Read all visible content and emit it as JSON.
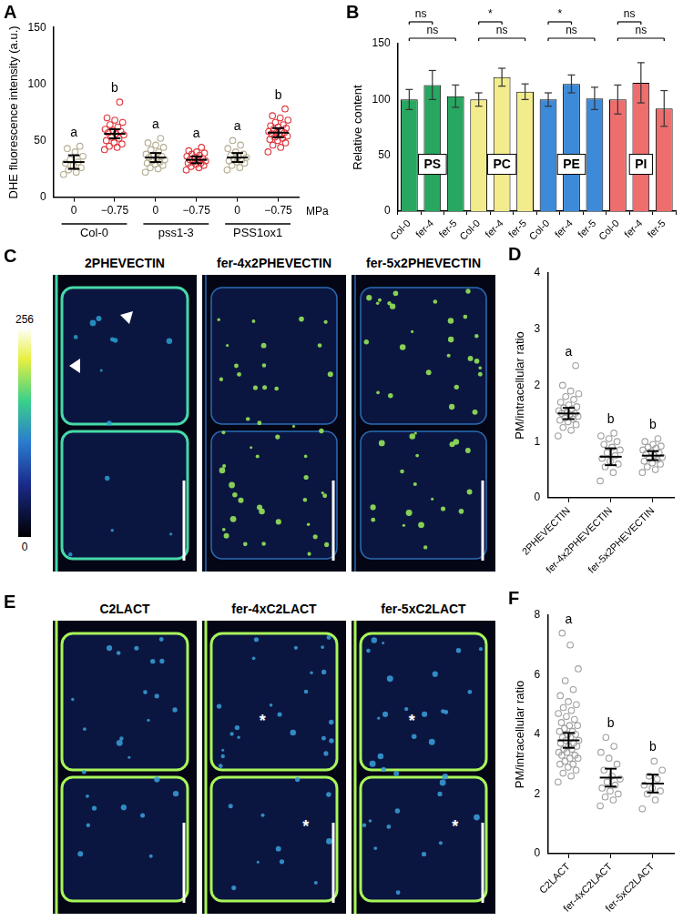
{
  "chart_data": [
    {
      "panel": "A",
      "type": "dot_plot",
      "y_label": "DHE fluorescence intensity (a.u.)",
      "categories": [
        "0",
        "−0.75",
        "0",
        "−0.75",
        "0",
        "−0.75"
      ],
      "group_labels": [
        "Col-0",
        "pss1-3",
        "PSS1ox1"
      ],
      "x_unit": "MPa",
      "colors": [
        "#b5ac8f",
        "#e0353a",
        "#b5ac8f",
        "#e0353a",
        "#b5ac8f",
        "#e0353a"
      ],
      "points": [
        [
          20,
          22,
          24,
          26,
          28,
          30,
          31,
          33,
          36,
          40,
          43,
          45
        ],
        [
          42,
          44,
          45,
          47,
          48,
          50,
          52,
          53,
          55,
          56,
          57,
          58,
          59,
          60,
          62,
          64,
          66,
          68,
          70,
          84
        ],
        [
          22,
          25,
          26,
          28,
          29,
          30,
          31,
          32,
          33,
          34,
          35,
          36,
          37,
          38,
          40,
          42,
          44,
          46,
          48,
          52
        ],
        [
          24,
          26,
          27,
          28,
          29,
          30,
          30,
          31,
          32,
          33,
          33,
          34,
          35,
          36,
          37,
          38,
          39,
          40,
          41,
          44
        ],
        [
          24,
          26,
          28,
          30,
          31,
          32,
          33,
          34,
          35,
          36,
          37,
          38,
          40,
          43,
          46,
          50
        ],
        [
          40,
          44,
          46,
          48,
          50,
          51,
          52,
          53,
          54,
          55,
          56,
          57,
          57,
          58,
          59,
          60,
          61,
          62,
          63,
          64,
          66,
          68,
          70,
          72,
          78
        ]
      ],
      "means": [
        31,
        56,
        35,
        33,
        35,
        57
      ],
      "errors": [
        6,
        4,
        4,
        3,
        4,
        4
      ],
      "letters": [
        "a",
        "b",
        "a",
        "a",
        "a",
        "b"
      ],
      "ylim": [
        0,
        150
      ],
      "yticks": [
        0,
        50,
        100,
        150
      ],
      "grid": false
    },
    {
      "panel": "B",
      "type": "bar",
      "y_label": "Relative content",
      "categories": [
        "Col-0",
        "fer-4",
        "fer-5",
        "Col-0",
        "fer-4",
        "fer-5",
        "Col-0",
        "fer-4",
        "fer-5",
        "Col-0",
        "fer-4",
        "fer-5"
      ],
      "group_labels": [
        "PS",
        "PC",
        "PE",
        "PI"
      ],
      "values": [
        100,
        113,
        103,
        100,
        120,
        107,
        100,
        114,
        101,
        100,
        115,
        92
      ],
      "errors": [
        9,
        13,
        10,
        6,
        8,
        7,
        6,
        8,
        10,
        13,
        18,
        16
      ],
      "colors": [
        "#27a760",
        "#27a760",
        "#27a760",
        "#f3ec8c",
        "#f3ec8c",
        "#f3ec8c",
        "#3c8ad8",
        "#3c8ad8",
        "#3c8ad8",
        "#ee6e6e",
        "#ee6e6e",
        "#ee6e6e"
      ],
      "comparisons": [
        {
          "between": [
            0,
            1
          ],
          "label": "ns"
        },
        {
          "between": [
            0,
            2
          ],
          "label": "ns"
        },
        {
          "between": [
            3,
            4
          ],
          "label": "*"
        },
        {
          "between": [
            3,
            5
          ],
          "label": "ns"
        },
        {
          "between": [
            6,
            7
          ],
          "label": "*"
        },
        {
          "between": [
            6,
            8
          ],
          "label": "ns"
        },
        {
          "between": [
            9,
            10
          ],
          "label": "ns"
        },
        {
          "between": [
            9,
            11
          ],
          "label": "ns"
        }
      ],
      "ylim": [
        0,
        150
      ],
      "yticks": [
        0,
        50,
        100,
        150
      ],
      "grid": false
    },
    {
      "panel": "D",
      "type": "dot_plot",
      "y_label": "PM/intracellular ratio",
      "categories": [
        "2PHEVECTIN",
        "fer-4x2PHEVECTIN",
        "fer-5x2PHEVECTIN"
      ],
      "colors": [
        "#a0a0a0",
        "#a0a0a0",
        "#a0a0a0"
      ],
      "points": [
        [
          1.1,
          1.2,
          1.25,
          1.3,
          1.35,
          1.38,
          1.4,
          1.42,
          1.45,
          1.48,
          1.5,
          1.5,
          1.52,
          1.55,
          1.58,
          1.6,
          1.62,
          1.65,
          1.7,
          1.75,
          1.8,
          1.85,
          1.9,
          2.0,
          2.35
        ],
        [
          0.3,
          0.45,
          0.55,
          0.6,
          0.65,
          0.7,
          0.75,
          0.8,
          0.85,
          0.9,
          0.95,
          1.0,
          1.05,
          1.1,
          1.15
        ],
        [
          0.45,
          0.5,
          0.55,
          0.6,
          0.62,
          0.65,
          0.68,
          0.7,
          0.72,
          0.75,
          0.78,
          0.8,
          0.82,
          0.85,
          0.88,
          0.9,
          0.92,
          0.95,
          1.0,
          1.05
        ]
      ],
      "means": [
        1.5,
        0.73,
        0.75
      ],
      "errors": [
        0.1,
        0.15,
        0.08
      ],
      "letters": [
        "a",
        "b",
        "b"
      ],
      "ylim": [
        0,
        4
      ],
      "yticks": [
        0,
        1,
        2,
        3,
        4
      ],
      "grid": false
    },
    {
      "panel": "F",
      "type": "dot_plot",
      "y_label": "PM/intracellular ratio",
      "categories": [
        "C2LACT",
        "fer-4xC2LACT",
        "fer-5xC2LACT"
      ],
      "colors": [
        "#a0a0a0",
        "#a0a0a0",
        "#a0a0a0"
      ],
      "points": [
        [
          2.4,
          2.6,
          2.7,
          2.8,
          2.9,
          3.0,
          3.0,
          3.1,
          3.2,
          3.2,
          3.3,
          3.3,
          3.4,
          3.4,
          3.5,
          3.5,
          3.6,
          3.6,
          3.7,
          3.7,
          3.8,
          3.8,
          3.9,
          3.9,
          4.0,
          4.0,
          4.1,
          4.1,
          4.2,
          4.3,
          4.3,
          4.4,
          4.5,
          4.6,
          4.7,
          4.8,
          4.9,
          5.0,
          5.1,
          5.3,
          5.5,
          5.8,
          6.2,
          7.0,
          7.4
        ],
        [
          1.6,
          1.8,
          1.9,
          2.0,
          2.1,
          2.2,
          2.3,
          2.4,
          2.5,
          2.6,
          2.8,
          3.0,
          3.2,
          3.4,
          3.6,
          3.9
        ],
        [
          1.5,
          1.8,
          2.0,
          2.1,
          2.2,
          2.3,
          2.5,
          2.6,
          2.8,
          3.1
        ]
      ],
      "means": [
        3.8,
        2.55,
        2.35
      ],
      "errors": [
        0.25,
        0.3,
        0.3
      ],
      "letters": [
        "a",
        "b",
        "b"
      ],
      "ylim": [
        0,
        8
      ],
      "yticks": [
        0,
        2,
        4,
        6,
        8
      ],
      "grid": false
    }
  ],
  "image_panels": [
    {
      "panel": "C",
      "images": [
        {
          "title": "2PHEVECTIN",
          "annotations": []
        },
        {
          "title": "fer-4x2PHEVECTIN",
          "annotations": []
        },
        {
          "title": "fer-5x2PHEVECTIN",
          "annotations": []
        }
      ],
      "colorbar": {
        "range": [
          0,
          256
        ],
        "ticks": [
          0,
          256
        ]
      }
    },
    {
      "panel": "E",
      "images": [
        {
          "title": "C2LACT",
          "annotations": []
        },
        {
          "title": "fer-4xC2LACT",
          "annotations": [
            "*",
            "*"
          ]
        },
        {
          "title": "fer-5xC2LACT",
          "annotations": [
            "*",
            "*"
          ]
        }
      ]
    }
  ]
}
